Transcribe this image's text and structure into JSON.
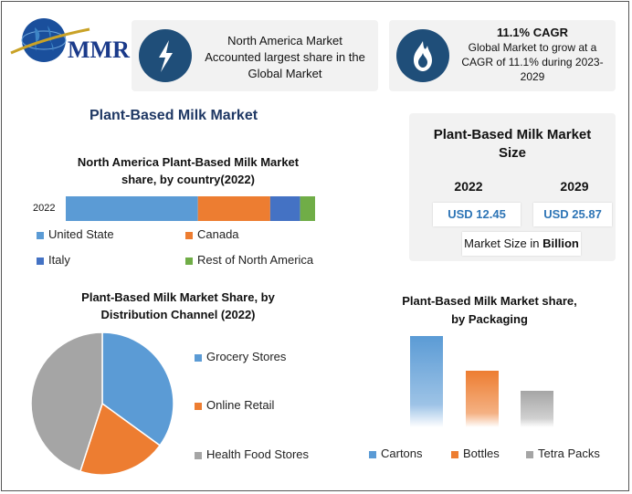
{
  "logo": {
    "text": "MMR"
  },
  "card1": {
    "line1": "North America Market",
    "line2": "Accounted largest share in the",
    "line3": "Global Market"
  },
  "card2": {
    "title": "11.1% CAGR",
    "line1": "Global Market to grow at a",
    "line2": "CAGR of 11.1% during 2023-",
    "line3": "2029"
  },
  "main_title": "Plant-Based Milk Market",
  "size_card": {
    "title_line1": "Plant-Based Milk Market",
    "title_line2": "Size",
    "year1": "2022",
    "year2": "2029",
    "value1": "USD 12.45",
    "value2": "USD 25.87",
    "footer_prefix": "Market Size in ",
    "footer_bold": "Billion"
  },
  "colors": {
    "blue": "#5b9bd5",
    "orange": "#ed7d31",
    "gray": "#a5a5a5",
    "darkblue": "#4472c4",
    "green": "#70ad47",
    "title": "#1f3864"
  },
  "chart_data": [
    {
      "type": "bar",
      "orientation": "horizontal-stacked",
      "title_line1": "North America Plant-Based Milk Market",
      "title_line2": "share, by country(2022)",
      "categories": [
        "2022"
      ],
      "series": [
        {
          "name": "United State",
          "values": [
            53
          ]
        },
        {
          "name": "Canada",
          "values": [
            29
          ]
        },
        {
          "name": "Italy",
          "values": [
            12
          ]
        },
        {
          "name": "Rest of North America",
          "values": [
            6
          ]
        }
      ]
    },
    {
      "type": "pie",
      "title_line1": "Plant-Based Milk Market Share, by",
      "title_line2": "Distribution Channel (2022)",
      "labels": [
        "Grocery Stores",
        "Online Retail",
        "Health Food Stores"
      ],
      "values": [
        35,
        20,
        45
      ]
    },
    {
      "type": "bar",
      "title_line1": "Plant-Based Milk Market share,",
      "title_line2": "by Packaging",
      "categories": [
        "Cartons",
        "Bottles",
        "Tetra Packs"
      ],
      "values": [
        100,
        62,
        40
      ]
    }
  ]
}
